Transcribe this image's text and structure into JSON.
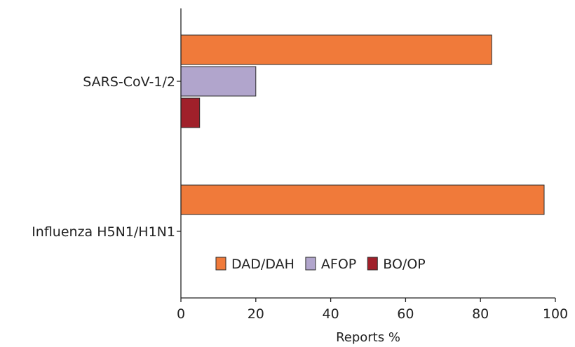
{
  "chart_data": {
    "type": "bar",
    "orientation": "horizontal",
    "categories": [
      "SARS-CoV-1/2",
      "Influenza H5N1/H1N1"
    ],
    "series": [
      {
        "name": "DAD/DAH",
        "color": "#f07a3a",
        "values": [
          83,
          97
        ]
      },
      {
        "name": "AFOP",
        "color": "#b1a5cc",
        "values": [
          20,
          null
        ]
      },
      {
        "name": "BO/OP",
        "color": "#a0202a",
        "values": [
          5,
          null
        ]
      }
    ],
    "xlabel": "Reports %",
    "xlim": [
      0,
      100
    ],
    "xticks": [
      0,
      20,
      40,
      60,
      80,
      100
    ],
    "grid": false,
    "legend_position": "inside-bottom"
  }
}
